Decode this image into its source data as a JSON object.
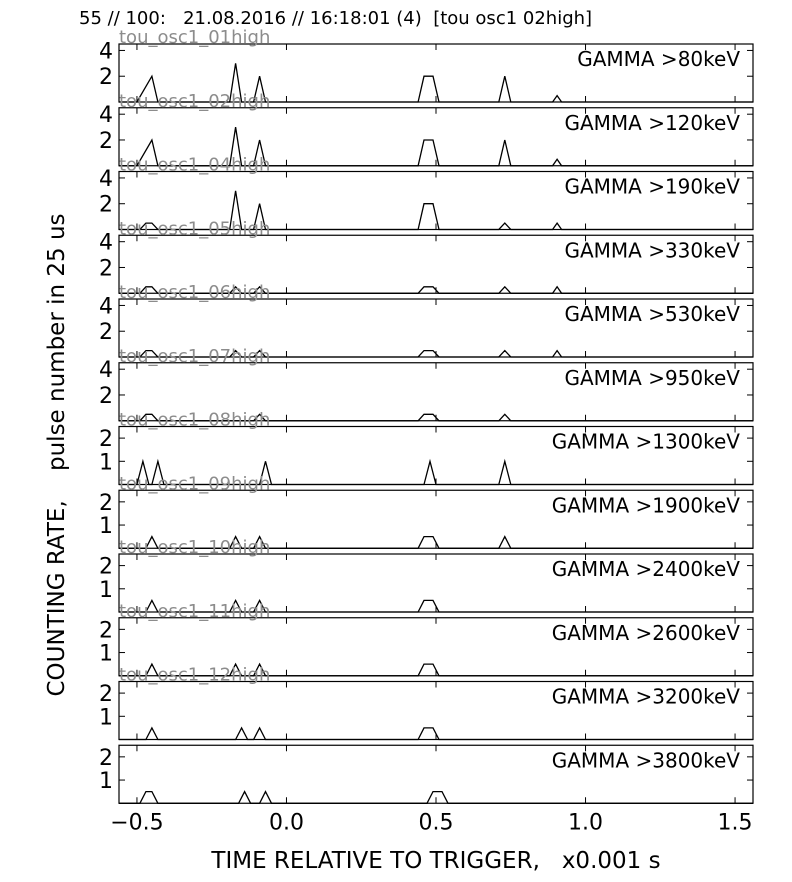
{
  "header": {
    "title": "55 // 100:   21.08.2016 // 16:18:01 (4)  [tou osc1 02high]"
  },
  "axes": {
    "ylabel": "COUNTING RATE,    pulse number in 25 us",
    "xlabel": "TIME RELATIVE TO TRIGGER,   x0.001 s"
  },
  "chart_data": {
    "type": "line",
    "xlim": [
      -0.56,
      1.56
    ],
    "xticks": [
      -0.5,
      0.0,
      0.5,
      1.0,
      1.5
    ],
    "xtick_labels": [
      "−0.5",
      "0.0",
      "0.5",
      "1.0",
      "1.5"
    ],
    "panels": [
      {
        "channel": "tou_osc1_01high",
        "label": "GAMMA >80keV",
        "ylim": [
          0,
          4.5
        ],
        "yticks": [
          2,
          4
        ],
        "points": [
          [
            -0.5,
            0
          ],
          [
            -0.45,
            2
          ],
          [
            -0.43,
            0
          ],
          [
            -0.19,
            0
          ],
          [
            -0.17,
            3
          ],
          [
            -0.15,
            0
          ],
          [
            -0.11,
            0
          ],
          [
            -0.09,
            2
          ],
          [
            -0.07,
            0
          ],
          [
            0.44,
            0
          ],
          [
            0.46,
            2
          ],
          [
            0.49,
            2
          ],
          [
            0.51,
            0
          ],
          [
            0.71,
            0
          ],
          [
            0.73,
            2
          ],
          [
            0.75,
            0
          ],
          [
            0.89,
            0
          ],
          [
            0.905,
            0.5
          ],
          [
            0.92,
            0
          ]
        ]
      },
      {
        "channel": "tou_osc1_02high",
        "label": "GAMMA >120keV",
        "ylim": [
          0,
          4.5
        ],
        "yticks": [
          2,
          4
        ],
        "points": [
          [
            -0.5,
            0
          ],
          [
            -0.45,
            2
          ],
          [
            -0.43,
            0
          ],
          [
            -0.19,
            0
          ],
          [
            -0.17,
            3
          ],
          [
            -0.15,
            0
          ],
          [
            -0.11,
            0
          ],
          [
            -0.09,
            2
          ],
          [
            -0.07,
            0
          ],
          [
            0.44,
            0
          ],
          [
            0.46,
            2
          ],
          [
            0.49,
            2
          ],
          [
            0.51,
            0
          ],
          [
            0.71,
            0
          ],
          [
            0.73,
            2
          ],
          [
            0.75,
            0
          ],
          [
            0.89,
            0
          ],
          [
            0.905,
            0.5
          ],
          [
            0.92,
            0
          ]
        ]
      },
      {
        "channel": "tou_osc1_04high",
        "label": "GAMMA >190keV",
        "ylim": [
          0,
          4.5
        ],
        "yticks": [
          2,
          4
        ],
        "points": [
          [
            -0.49,
            0
          ],
          [
            -0.47,
            0.5
          ],
          [
            -0.45,
            0.5
          ],
          [
            -0.43,
            0
          ],
          [
            -0.19,
            0
          ],
          [
            -0.17,
            3
          ],
          [
            -0.15,
            0
          ],
          [
            -0.11,
            0
          ],
          [
            -0.09,
            2
          ],
          [
            -0.07,
            0
          ],
          [
            0.44,
            0
          ],
          [
            0.46,
            2
          ],
          [
            0.49,
            2
          ],
          [
            0.51,
            0
          ],
          [
            0.71,
            0
          ],
          [
            0.73,
            0.5
          ],
          [
            0.75,
            0
          ],
          [
            0.89,
            0
          ],
          [
            0.905,
            0.5
          ],
          [
            0.92,
            0
          ]
        ]
      },
      {
        "channel": "tou_osc1_05high",
        "label": "GAMMA >330keV",
        "ylim": [
          0,
          4.5
        ],
        "yticks": [
          2,
          4
        ],
        "points": [
          [
            -0.49,
            0
          ],
          [
            -0.47,
            0.5
          ],
          [
            -0.45,
            0.5
          ],
          [
            -0.43,
            0
          ],
          [
            -0.19,
            0
          ],
          [
            -0.17,
            0.5
          ],
          [
            -0.15,
            0
          ],
          [
            -0.11,
            0
          ],
          [
            -0.09,
            0.5
          ],
          [
            -0.07,
            0
          ],
          [
            0.44,
            0
          ],
          [
            0.46,
            0.5
          ],
          [
            0.49,
            0.5
          ],
          [
            0.51,
            0
          ],
          [
            0.71,
            0
          ],
          [
            0.73,
            0.5
          ],
          [
            0.75,
            0
          ],
          [
            0.89,
            0
          ],
          [
            0.905,
            0.5
          ],
          [
            0.92,
            0
          ]
        ]
      },
      {
        "channel": "tou_osc1_06high",
        "label": "GAMMA >530keV",
        "ylim": [
          0,
          4.5
        ],
        "yticks": [
          2,
          4
        ],
        "points": [
          [
            -0.49,
            0
          ],
          [
            -0.47,
            0.5
          ],
          [
            -0.45,
            0.5
          ],
          [
            -0.43,
            0
          ],
          [
            -0.19,
            0
          ],
          [
            -0.17,
            0.5
          ],
          [
            -0.15,
            0
          ],
          [
            -0.11,
            0
          ],
          [
            -0.09,
            0.5
          ],
          [
            -0.07,
            0
          ],
          [
            0.44,
            0
          ],
          [
            0.46,
            0.5
          ],
          [
            0.49,
            0.5
          ],
          [
            0.51,
            0
          ],
          [
            0.71,
            0
          ],
          [
            0.73,
            0.5
          ],
          [
            0.75,
            0
          ],
          [
            0.89,
            0
          ],
          [
            0.905,
            0.5
          ],
          [
            0.92,
            0
          ]
        ]
      },
      {
        "channel": "tou_osc1_07high",
        "label": "GAMMA >950keV",
        "ylim": [
          0,
          4.5
        ],
        "yticks": [
          2,
          4
        ],
        "points": [
          [
            -0.49,
            0
          ],
          [
            -0.47,
            0.5
          ],
          [
            -0.45,
            0.5
          ],
          [
            -0.43,
            0
          ],
          [
            -0.11,
            0
          ],
          [
            -0.09,
            0.5
          ],
          [
            -0.07,
            0
          ],
          [
            0.44,
            0
          ],
          [
            0.46,
            0.5
          ],
          [
            0.49,
            0.5
          ],
          [
            0.51,
            0
          ],
          [
            0.71,
            0
          ],
          [
            0.73,
            0.5
          ],
          [
            0.75,
            0
          ]
        ]
      },
      {
        "channel": "tou_osc1_08high",
        "label": "GAMMA >1300keV",
        "ylim": [
          0,
          2.5
        ],
        "yticks": [
          1,
          2
        ],
        "points": [
          [
            -0.5,
            0
          ],
          [
            -0.48,
            1
          ],
          [
            -0.46,
            0
          ],
          [
            -0.45,
            0
          ],
          [
            -0.43,
            1
          ],
          [
            -0.41,
            0
          ],
          [
            -0.09,
            0
          ],
          [
            -0.07,
            1
          ],
          [
            -0.05,
            0
          ],
          [
            0.46,
            0
          ],
          [
            0.48,
            1
          ],
          [
            0.5,
            0
          ],
          [
            0.71,
            0
          ],
          [
            0.73,
            1
          ],
          [
            0.75,
            0
          ]
        ]
      },
      {
        "channel": "tou_osc1_09high",
        "label": "GAMMA >1900keV",
        "ylim": [
          0,
          2.5
        ],
        "yticks": [
          1,
          2
        ],
        "points": [
          [
            -0.47,
            0
          ],
          [
            -0.45,
            0.5
          ],
          [
            -0.43,
            0
          ],
          [
            -0.19,
            0
          ],
          [
            -0.17,
            0.5
          ],
          [
            -0.15,
            0
          ],
          [
            -0.11,
            0
          ],
          [
            -0.09,
            0.5
          ],
          [
            -0.07,
            0
          ],
          [
            0.44,
            0
          ],
          [
            0.46,
            0.5
          ],
          [
            0.49,
            0.5
          ],
          [
            0.51,
            0
          ],
          [
            0.71,
            0
          ],
          [
            0.73,
            0.5
          ],
          [
            0.75,
            0
          ]
        ]
      },
      {
        "channel": "tou_osc1_10high",
        "label": "GAMMA >2400keV",
        "ylim": [
          0,
          2.5
        ],
        "yticks": [
          1,
          2
        ],
        "points": [
          [
            -0.47,
            0
          ],
          [
            -0.45,
            0.5
          ],
          [
            -0.43,
            0
          ],
          [
            -0.19,
            0
          ],
          [
            -0.17,
            0.5
          ],
          [
            -0.15,
            0
          ],
          [
            -0.11,
            0
          ],
          [
            -0.09,
            0.5
          ],
          [
            -0.07,
            0
          ],
          [
            0.44,
            0
          ],
          [
            0.46,
            0.5
          ],
          [
            0.49,
            0.5
          ],
          [
            0.51,
            0
          ]
        ]
      },
      {
        "channel": "tou_osc1_11high",
        "label": "GAMMA >2600keV",
        "ylim": [
          0,
          2.5
        ],
        "yticks": [
          1,
          2
        ],
        "points": [
          [
            -0.47,
            0
          ],
          [
            -0.45,
            0.5
          ],
          [
            -0.43,
            0
          ],
          [
            -0.19,
            0
          ],
          [
            -0.17,
            0.5
          ],
          [
            -0.15,
            0
          ],
          [
            -0.11,
            0
          ],
          [
            -0.09,
            0.5
          ],
          [
            -0.07,
            0
          ],
          [
            0.44,
            0
          ],
          [
            0.46,
            0.5
          ],
          [
            0.49,
            0.5
          ],
          [
            0.51,
            0
          ]
        ]
      },
      {
        "channel": "tou_osc1_12high",
        "label": "GAMMA >3200keV",
        "ylim": [
          0,
          2.5
        ],
        "yticks": [
          1,
          2
        ],
        "points": [
          [
            -0.47,
            0
          ],
          [
            -0.45,
            0.5
          ],
          [
            -0.43,
            0
          ],
          [
            -0.17,
            0
          ],
          [
            -0.15,
            0.5
          ],
          [
            -0.13,
            0
          ],
          [
            -0.11,
            0
          ],
          [
            -0.09,
            0.5
          ],
          [
            -0.07,
            0
          ],
          [
            0.44,
            0
          ],
          [
            0.46,
            0.5
          ],
          [
            0.49,
            0.5
          ],
          [
            0.51,
            0
          ]
        ]
      },
      {
        "channel": "",
        "label": "GAMMA >3800keV",
        "ylim": [
          0,
          2.5
        ],
        "yticks": [
          1,
          2
        ],
        "points": [
          [
            -0.49,
            0
          ],
          [
            -0.47,
            0.5
          ],
          [
            -0.45,
            0.5
          ],
          [
            -0.43,
            0
          ],
          [
            -0.16,
            0
          ],
          [
            -0.14,
            0.5
          ],
          [
            -0.12,
            0
          ],
          [
            -0.09,
            0
          ],
          [
            -0.07,
            0.5
          ],
          [
            -0.05,
            0
          ],
          [
            0.47,
            0
          ],
          [
            0.49,
            0.5
          ],
          [
            0.52,
            0.5
          ],
          [
            0.54,
            0
          ]
        ]
      }
    ]
  }
}
